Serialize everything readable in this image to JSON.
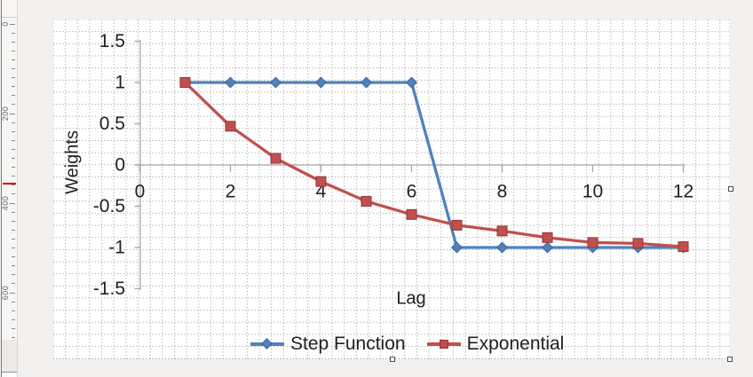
{
  "ruler": {
    "labels": [
      "0",
      "200",
      "400",
      "600"
    ],
    "marker_color": "#D90000"
  },
  "chart_data": {
    "type": "line",
    "title": "",
    "xlabel": "Lag",
    "ylabel": "Weights",
    "x": [
      1,
      2,
      3,
      4,
      5,
      6,
      7,
      8,
      9,
      10,
      11,
      12
    ],
    "series": [
      {
        "name": "Step Function",
        "color": "#4F81BD",
        "marker_border": "#3A679C",
        "marker": "diamond",
        "values": [
          1,
          1,
          1,
          1,
          1,
          1,
          -1,
          -1,
          -1,
          -1,
          -1,
          -1
        ]
      },
      {
        "name": "Exponential",
        "color": "#C0504D",
        "marker_border": "#943634",
        "marker": "square",
        "values": [
          1,
          0.47,
          0.08,
          -0.2,
          -0.44,
          -0.6,
          -0.73,
          -0.8,
          -0.88,
          -0.94,
          -0.95,
          -0.99
        ]
      }
    ],
    "x_ticks": [
      0,
      2,
      4,
      6,
      8,
      10,
      12
    ],
    "y_ticks": [
      1.5,
      1,
      0.5,
      0,
      -0.5,
      -1,
      -1.5
    ],
    "xlim": [
      0,
      12
    ],
    "ylim": [
      -1.5,
      1.5
    ],
    "grid": true,
    "legend_position": "bottom"
  }
}
